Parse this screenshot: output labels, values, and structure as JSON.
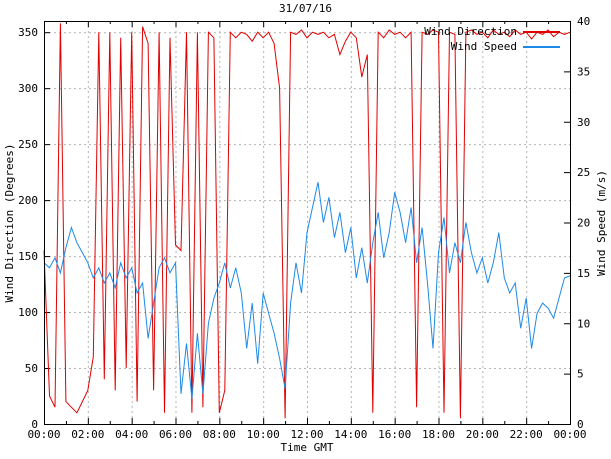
{
  "chart_data": {
    "type": "line",
    "title": "31/07/16",
    "xlabel": "Time GMT",
    "ylabel_left": "Wind Direction (Degrees)",
    "ylabel_right": "Wind Speed (m/s)",
    "xlim": [
      0,
      24
    ],
    "ylim_left": [
      0,
      360
    ],
    "ylim_right": [
      0,
      40
    ],
    "grid": true,
    "legend_position": "top-right-inside",
    "x_tick_hours": [
      0,
      2,
      4,
      6,
      8,
      10,
      12,
      14,
      16,
      18,
      20,
      22,
      24
    ],
    "x_tick_labels": [
      "00:00",
      "02:00",
      "04:00",
      "06:00",
      "08:00",
      "10:00",
      "12:00",
      "14:00",
      "16:00",
      "18:00",
      "20:00",
      "22:00",
      "00:00"
    ],
    "x_minor_tick_hours": [
      1,
      3,
      5,
      7,
      9,
      11,
      13,
      15,
      17,
      19,
      21,
      23
    ],
    "y_left_ticks": [
      0,
      50,
      100,
      150,
      200,
      250,
      300,
      350
    ],
    "y_right_ticks": [
      0,
      5,
      10,
      15,
      20,
      25,
      30,
      35,
      40
    ],
    "colors": {
      "wind_direction": "#e00000",
      "wind_speed": "#1e8ae8",
      "grid": "#b4b4b4",
      "frame": "#000000",
      "background": "#ffffff",
      "text": "#000000"
    },
    "x_unit": "hours",
    "x_start_hour": 0,
    "x_interval_hours": 0.25,
    "series": [
      {
        "name": "Wind Direction",
        "axis": "left",
        "color_key": "wind_direction",
        "values": [
          155,
          25,
          15,
          358,
          20,
          15,
          10,
          20,
          30,
          60,
          350,
          40,
          350,
          30,
          345,
          50,
          350,
          20,
          355,
          340,
          30,
          350,
          10,
          345,
          160,
          155,
          350,
          10,
          350,
          15,
          350,
          345,
          10,
          30,
          350,
          345,
          350,
          348,
          342,
          350,
          345,
          350,
          340,
          300,
          5,
          350,
          348,
          352,
          345,
          350,
          348,
          350,
          345,
          348,
          330,
          342,
          350,
          345,
          310,
          330,
          10,
          350,
          345,
          352,
          348,
          350,
          345,
          350,
          15,
          350,
          348,
          352,
          350,
          10,
          350,
          348,
          5,
          350,
          352,
          348,
          350,
          345,
          352,
          348,
          350,
          346,
          352,
          348,
          350,
          344,
          350,
          348,
          352,
          346,
          350,
          348,
          350
        ]
      },
      {
        "name": "Wind Speed",
        "axis": "right",
        "color_key": "wind_speed",
        "values": [
          16,
          15.5,
          16.5,
          15,
          17.5,
          19.5,
          18,
          17,
          16,
          14.5,
          15.5,
          14,
          15,
          13.5,
          16,
          14.5,
          15.5,
          13,
          14,
          8.5,
          12,
          15.5,
          16.5,
          15,
          16,
          3,
          8,
          2.5,
          9,
          3,
          10,
          12.5,
          14,
          16,
          13.5,
          15.5,
          13,
          7.5,
          12,
          6,
          13,
          11,
          9,
          6.5,
          3.5,
          12,
          16,
          13,
          19,
          21.5,
          24,
          20,
          22.5,
          18.5,
          21,
          17,
          19.5,
          14.5,
          17.5,
          14,
          18,
          21,
          16.5,
          19,
          23,
          21,
          18,
          21.5,
          16,
          19.5,
          14,
          7.5,
          17,
          20.5,
          15,
          18,
          16,
          20,
          17,
          15,
          16.5,
          14,
          16,
          19,
          14.5,
          13,
          14,
          9.5,
          12.5,
          7.5,
          11,
          12,
          11.5,
          10.5,
          12.5,
          14.5,
          14.7
        ]
      }
    ]
  }
}
